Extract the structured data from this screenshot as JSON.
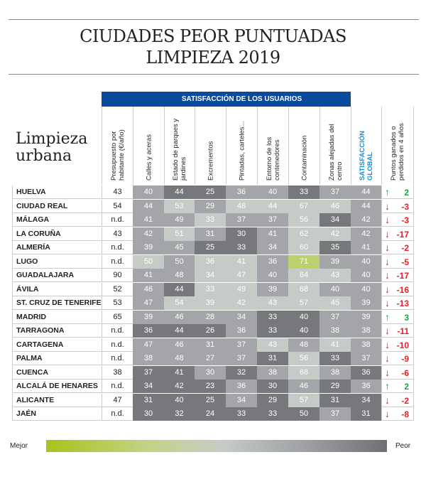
{
  "title": [
    "CIUDADES PEOR PUNTUADAS",
    "LIMPIEZA 2019"
  ],
  "chart_data": {
    "type": "table",
    "subtitle": [
      "Limpieza",
      "urbana"
    ],
    "group_header": "SATISFACCIÓN DE LOS USUARIOS",
    "columns": [
      "Presupuesto por habitante (€/año)",
      "Calles y aceras",
      "Estado de parques y jardines",
      "Excrementos",
      "Pintadas, carteles...",
      "Entorno de los contenedores",
      "Contaminación",
      "Zonas alejadas del centro",
      "SATISFACCIÓN GLOBAL",
      "Puntos ganados o perdidos en 4 años"
    ],
    "column_header_color_global": "#1a8fd6",
    "shade_colors": {
      "l": "#c5cbc7",
      "m": "#a3a5a8",
      "d": "#77787c",
      "g": "#bed06c"
    },
    "change_colors": {
      "up": "#1aa34a",
      "down": "#e0202a"
    },
    "rows": [
      {
        "city": "HUELVA",
        "budget": "43",
        "values": [
          40,
          44,
          25,
          36,
          40,
          33,
          37
        ],
        "shades": "mddmmdm",
        "global": 44,
        "gshade": "m",
        "change": "2"
      },
      {
        "city": "CIUDAD REAL",
        "budget": "54",
        "values": [
          44,
          53,
          29,
          48,
          44,
          67,
          46
        ],
        "shades": "mlmllll",
        "global": 44,
        "gshade": "m",
        "change": "-3"
      },
      {
        "city": "MÁLAGA",
        "budget": "n.d.",
        "values": [
          41,
          49,
          33,
          37,
          37,
          56,
          34
        ],
        "shades": "mmlmmld",
        "global": 42,
        "gshade": "m",
        "change": "-3"
      },
      {
        "city": "LA CORUÑA",
        "budget": "43",
        "values": [
          42,
          51,
          31,
          30,
          41,
          62,
          42
        ],
        "shades": "mlmdmll",
        "global": 42,
        "gshade": "m",
        "change": "-17"
      },
      {
        "city": "ALMERÍA",
        "budget": "n.d.",
        "values": [
          39,
          45,
          25,
          33,
          34,
          60,
          35
        ],
        "shades": "mmddmld",
        "global": 41,
        "gshade": "m",
        "change": "-2"
      },
      {
        "city": "LUGO",
        "budget": "n.d.",
        "values": [
          50,
          50,
          36,
          41,
          36,
          71,
          39
        ],
        "shades": "lmllmgm",
        "global": 40,
        "gshade": "m",
        "change": "-5"
      },
      {
        "city": "GUADALAJARA",
        "budget": "90",
        "values": [
          41,
          48,
          34,
          47,
          40,
          64,
          43
        ],
        "shades": "mmllmll",
        "global": 40,
        "gshade": "m",
        "change": "-17"
      },
      {
        "city": "ÁVILA",
        "budget": "52",
        "values": [
          46,
          44,
          33,
          49,
          39,
          68,
          40
        ],
        "shades": "mdllmlm",
        "global": 40,
        "gshade": "m",
        "change": "-16"
      },
      {
        "city": "ST. CRUZ DE TENERIFE",
        "budget": "53",
        "values": [
          47,
          54,
          39,
          42,
          43,
          57,
          45
        ],
        "shades": "mllllll",
        "global": 39,
        "gshade": "m",
        "change": "-13"
      },
      {
        "city": "MADRID",
        "budget": "65",
        "values": [
          39,
          46,
          28,
          34,
          33,
          40,
          37
        ],
        "shades": "mmmmddm",
        "global": 39,
        "gshade": "m",
        "change": "3"
      },
      {
        "city": "TARRAGONA",
        "budget": "n.d.",
        "values": [
          36,
          44,
          26,
          36,
          33,
          40,
          38
        ],
        "shades": "dddmddm",
        "global": 38,
        "gshade": "m",
        "change": "-11"
      },
      {
        "city": "CARTAGENA",
        "budget": "n.d.",
        "values": [
          47,
          46,
          31,
          37,
          43,
          48,
          41
        ],
        "shades": "mmmmlml",
        "global": 38,
        "gshade": "m",
        "change": "-10"
      },
      {
        "city": "PALMA",
        "budget": "n.d.",
        "values": [
          38,
          48,
          27,
          37,
          31,
          56,
          33
        ],
        "shades": "mmmmdld",
        "global": 37,
        "gshade": "m",
        "change": "-9"
      },
      {
        "city": "CUENCA",
        "budget": "38",
        "values": [
          37,
          41,
          30,
          32,
          38,
          68,
          38
        ],
        "shades": "ddmdmlm",
        "global": 36,
        "gshade": "d",
        "change": "-6"
      },
      {
        "city": "ALCALÁ DE HENARES",
        "budget": "n.d.",
        "values": [
          34,
          42,
          23,
          36,
          30,
          46,
          29
        ],
        "shades": "dddmdmd",
        "global": 36,
        "gshade": "m",
        "change": "2"
      },
      {
        "city": "ALICANTE",
        "budget": "47",
        "values": [
          31,
          40,
          25,
          34,
          29,
          57,
          31
        ],
        "shades": "dddmdld",
        "global": 34,
        "gshade": "d",
        "change": "-2"
      },
      {
        "city": "JAÉN",
        "budget": "n.d.",
        "values": [
          30,
          32,
          24,
          33,
          33,
          50,
          37
        ],
        "shades": "ddddddm",
        "global": 31,
        "gshade": "d",
        "change": "-8"
      }
    ],
    "legend": {
      "left": "Mejor",
      "right": "Peor"
    }
  }
}
